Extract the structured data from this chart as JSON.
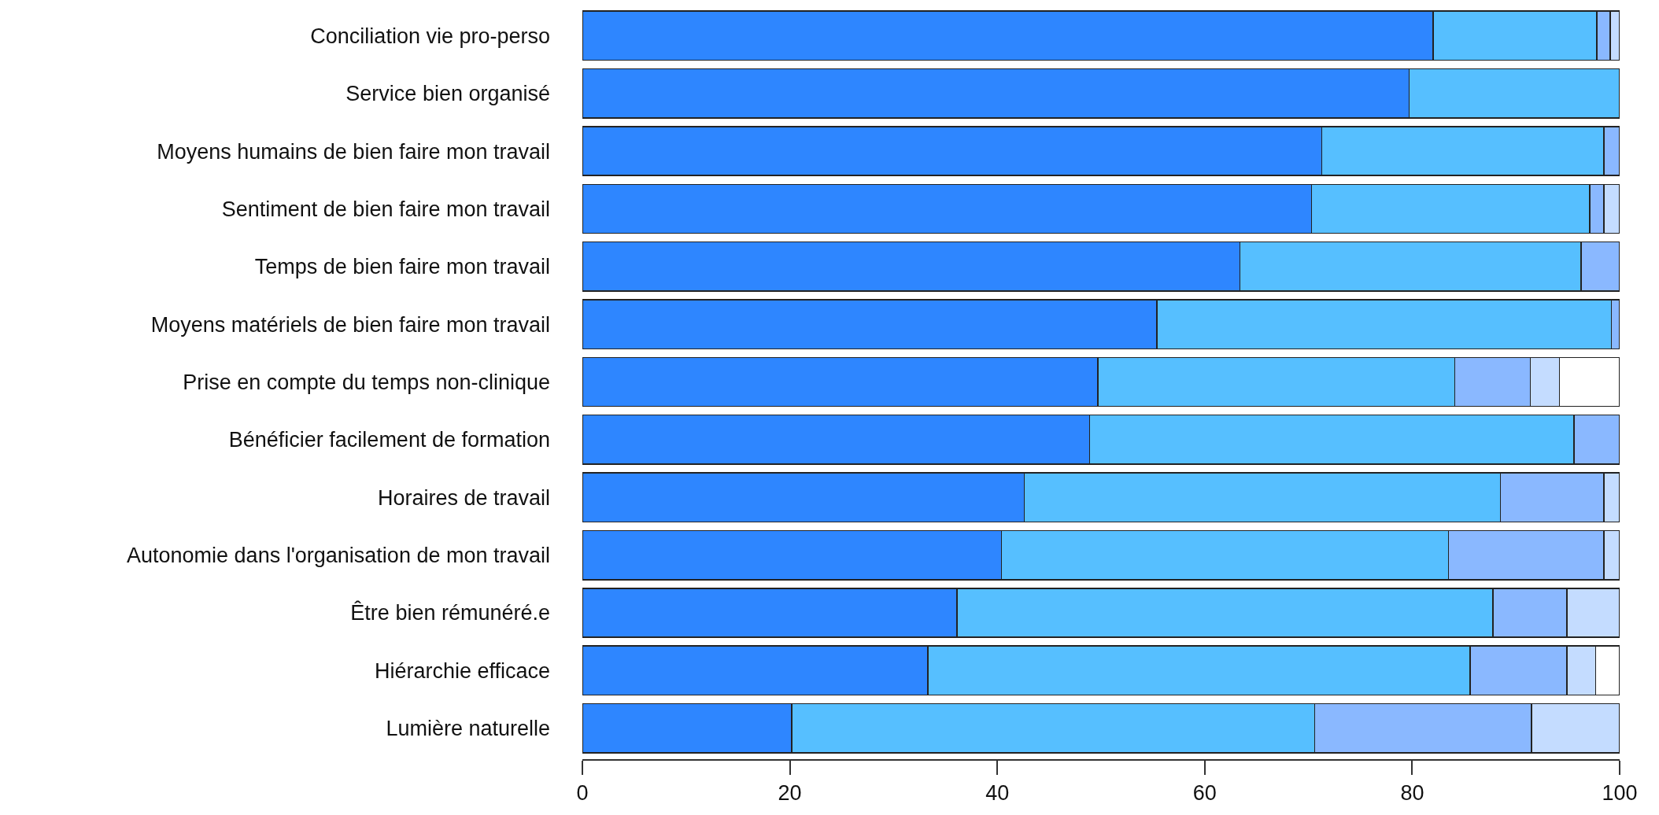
{
  "chart_data": {
    "type": "bar",
    "orientation": "horizontal",
    "stacked": true,
    "categories": [
      "Conciliation vie pro-perso",
      "Service bien organisé",
      "Moyens humains de bien faire mon travail",
      "Sentiment de bien faire mon travail",
      "Temps de bien faire mon travail",
      "Moyens matériels de bien faire mon travail",
      "Prise en compte du temps non-clinique",
      "Bénéficier facilement de formation",
      "Horaires de travail",
      "Autonomie dans l'organisation de mon travail",
      "Être bien rémunéré.e",
      "Hiérarchie efficace",
      "Lumière naturelle"
    ],
    "series": [
      {
        "color": "#2e86ff",
        "values": [
          82.0,
          79.7,
          71.3,
          70.3,
          63.4,
          55.4,
          49.7,
          48.9,
          42.6,
          40.4,
          36.1,
          33.3,
          20.2
        ]
      },
      {
        "color": "#56bfff",
        "values": [
          15.8,
          20.3,
          27.2,
          26.8,
          32.9,
          43.8,
          34.4,
          46.7,
          45.9,
          43.1,
          51.7,
          52.3,
          50.4
        ]
      },
      {
        "color": "#8ab8ff",
        "values": [
          1.3,
          null,
          1.5,
          1.4,
          3.7,
          0.8,
          7.3,
          4.4,
          10.0,
          15.0,
          7.1,
          9.3,
          20.9
        ]
      },
      {
        "color": "#c4dcff",
        "values": [
          0.9,
          null,
          null,
          1.5,
          null,
          null,
          2.8,
          null,
          1.5,
          1.5,
          5.1,
          2.8,
          8.5
        ]
      },
      {
        "color": "#ffffff",
        "values": [
          null,
          null,
          null,
          null,
          null,
          null,
          5.8,
          null,
          null,
          null,
          null,
          2.3,
          null
        ]
      }
    ],
    "xlim": [
      0,
      100
    ],
    "xticks": [
      0,
      20,
      40,
      60,
      80,
      100
    ]
  }
}
